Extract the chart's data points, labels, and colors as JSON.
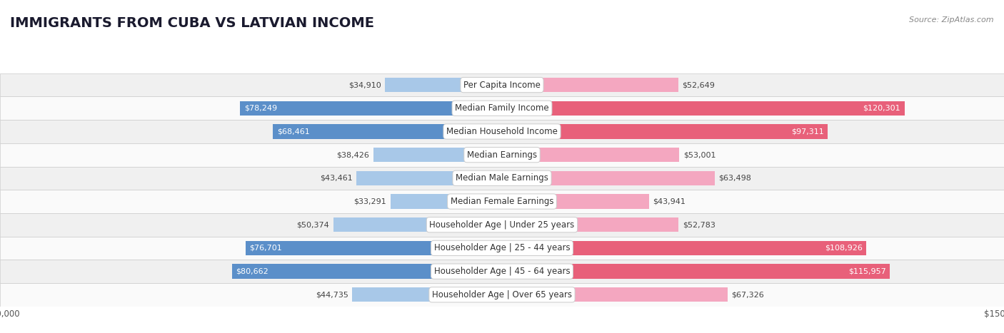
{
  "title": "IMMIGRANTS FROM CUBA VS LATVIAN INCOME",
  "source": "Source: ZipAtlas.com",
  "categories": [
    "Per Capita Income",
    "Median Family Income",
    "Median Household Income",
    "Median Earnings",
    "Median Male Earnings",
    "Median Female Earnings",
    "Householder Age | Under 25 years",
    "Householder Age | 25 - 44 years",
    "Householder Age | 45 - 64 years",
    "Householder Age | Over 65 years"
  ],
  "cuba_values": [
    34910,
    78249,
    68461,
    38426,
    43461,
    33291,
    50374,
    76701,
    80662,
    44735
  ],
  "latvian_values": [
    52649,
    120301,
    97311,
    53001,
    63498,
    43941,
    52783,
    108926,
    115957,
    67326
  ],
  "cuba_labels": [
    "$34,910",
    "$78,249",
    "$68,461",
    "$38,426",
    "$43,461",
    "$33,291",
    "$50,374",
    "$76,701",
    "$80,662",
    "$44,735"
  ],
  "latvian_labels": [
    "$52,649",
    "$120,301",
    "$97,311",
    "$53,001",
    "$63,498",
    "$43,941",
    "$52,783",
    "$108,926",
    "$115,957",
    "$67,326"
  ],
  "cuba_large": [
    false,
    true,
    true,
    false,
    false,
    false,
    false,
    true,
    true,
    false
  ],
  "latvian_large": [
    false,
    true,
    true,
    false,
    false,
    false,
    false,
    true,
    true,
    false
  ],
  "max_val": 150000,
  "cuba_color": "#a8c8e8",
  "cuba_color_dark": "#5b8fc9",
  "latvian_color": "#f4a7c0",
  "latvian_color_dark": "#e8607a",
  "bar_height": 0.62,
  "row_colors": [
    "#f0f0f0",
    "#fafafa"
  ],
  "label_fontsize": 8.0,
  "category_fontsize": 8.5,
  "title_fontsize": 14,
  "legend_fontsize": 9,
  "axis_label_fontsize": 8.5
}
